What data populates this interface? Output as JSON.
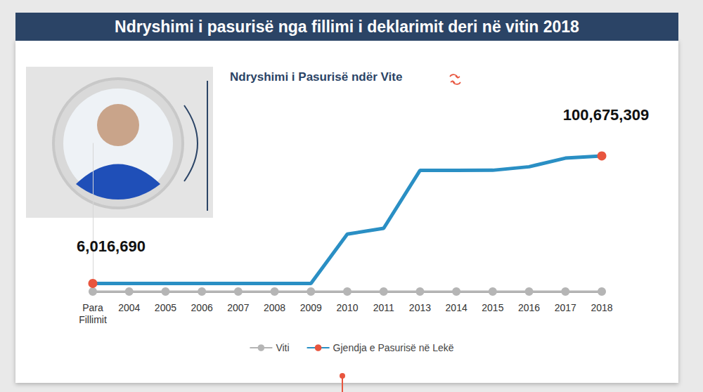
{
  "chart_data": {
    "type": "line",
    "title": "Ndryshimi i pasurisë nga fillimi i deklarimit deri në vitin 2018",
    "subtitle": "Ndryshimi i Pasurisë ndër Vite",
    "categories": [
      "Para Fillimit",
      "2004",
      "2005",
      "2006",
      "2007",
      "2008",
      "2009",
      "2010",
      "2011",
      "2013",
      "2014",
      "2015",
      "2016",
      "2017",
      "2018"
    ],
    "series": [
      {
        "name": "Viti",
        "color": "#b5b5b5",
        "marker": "circle",
        "values": [
          0,
          0,
          0,
          0,
          0,
          0,
          0,
          0,
          0,
          0,
          0,
          0,
          0,
          0,
          0
        ]
      },
      {
        "name": "Gjendja e Pasurisë në Lekë",
        "color": "#2a8fc4",
        "values": [
          6016690,
          6016690,
          6016690,
          6016690,
          6016690,
          6016690,
          6016690,
          42600000,
          46900000,
          89900000,
          89900000,
          90000000,
          92600000,
          99000000,
          100675309
        ],
        "value_labels": [
          "6,016,690",
          null,
          null,
          null,
          null,
          null,
          null,
          null,
          null,
          null,
          null,
          null,
          null,
          null,
          "100,675,309"
        ]
      }
    ],
    "ylim": [
      0,
      110000000
    ],
    "yticks": [],
    "tick_labels": "x",
    "grid": false,
    "legend": "bottom"
  }
}
